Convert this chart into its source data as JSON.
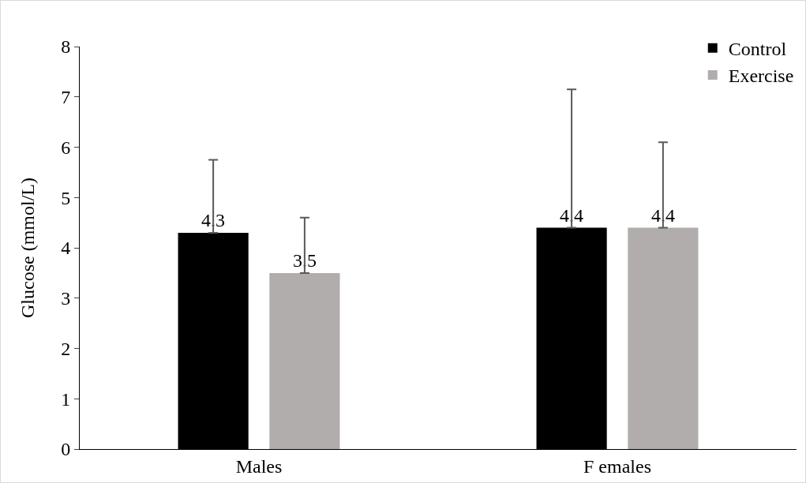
{
  "chart_data": {
    "type": "bar",
    "ylabel": "Glucose (mmol/L)",
    "categories": [
      "Males",
      "F emales"
    ],
    "series": [
      {
        "name": "Control",
        "color": "#000000",
        "values": [
          4.3,
          4.4
        ],
        "errors": [
          [
            4.3,
            5.75
          ],
          [
            4.4,
            7.15
          ]
        ]
      },
      {
        "name": "Exercise",
        "color": "#b0adac",
        "values": [
          3.5,
          4.4
        ],
        "errors": [
          [
            3.5,
            4.6
          ],
          [
            4.4,
            6.1
          ]
        ]
      }
    ],
    "ylim": [
      0,
      8
    ],
    "yticks": [
      0,
      1,
      2,
      3,
      4,
      5,
      6,
      7,
      8
    ],
    "grid": false,
    "legend": "top right",
    "data_labels": true
  }
}
